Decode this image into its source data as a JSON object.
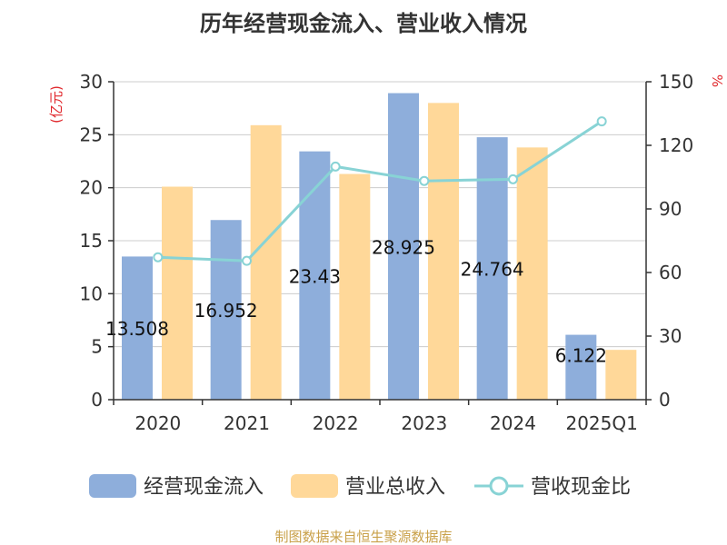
{
  "chart_data": {
    "type": "bar",
    "title": "历年经营现金流入、营业收入情况",
    "categories": [
      "2020",
      "2021",
      "2022",
      "2023",
      "2024",
      "2025Q1"
    ],
    "y_left": {
      "unit": "(亿元)",
      "min": 0,
      "max": 30,
      "ticks": [
        0,
        5,
        10,
        15,
        20,
        25,
        30
      ]
    },
    "y_right": {
      "unit": "%",
      "min": 0,
      "max": 150,
      "ticks": [
        0,
        30,
        60,
        90,
        120,
        150
      ]
    },
    "grid": true,
    "legend_position": "bottom",
    "series": [
      {
        "name": "经营现金流入",
        "type": "bar",
        "axis": "left",
        "color": "#8eaedb",
        "values": [
          13.508,
          16.952,
          23.43,
          28.925,
          24.764,
          6.122
        ],
        "labels": [
          "13.508",
          "16.952",
          "23.43",
          "28.925",
          "24.764",
          "6.122"
        ]
      },
      {
        "name": "营业总收入",
        "type": "bar",
        "axis": "left",
        "color": "#ffd899",
        "values": [
          20.1,
          25.9,
          21.3,
          28.0,
          23.8,
          4.7
        ]
      },
      {
        "name": "营收现金比",
        "type": "line",
        "axis": "right",
        "color": "#88d3d5",
        "values": [
          67.2,
          65.5,
          110.0,
          103.2,
          104.0,
          131.3
        ]
      }
    ]
  },
  "source_text": "制图数据来自恒生聚源数据库"
}
